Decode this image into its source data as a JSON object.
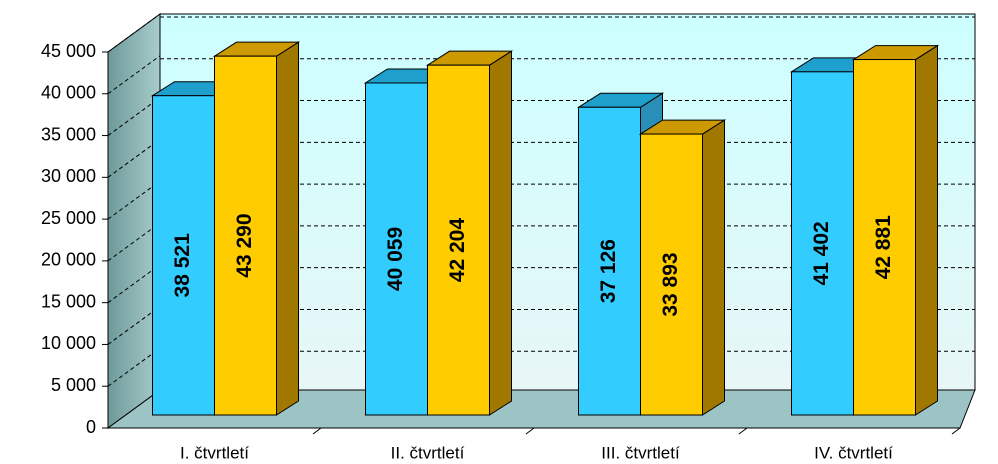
{
  "chart_data": {
    "type": "bar3d",
    "categories": [
      "I. čtvrtletí",
      "II. čtvrtletí",
      "III. čtvrtletí",
      "IV. čtvrtletí"
    ],
    "series": [
      {
        "color": "#33ccff",
        "values": [
          38521,
          40059,
          37126,
          41402
        ],
        "value_labels": [
          "38 521",
          "40 059",
          "37 126",
          "41 402"
        ]
      },
      {
        "color": "#ffcc00",
        "values": [
          43290,
          42204,
          33893,
          42881
        ],
        "value_labels": [
          "43 290",
          "42 204",
          "33 893",
          "42 881"
        ]
      }
    ],
    "ylim": [
      0,
      45000
    ],
    "yticks": [
      0,
      {
        "value": 5000,
        "label": "5 000"
      },
      {
        "value": 10000,
        "label": "10 000"
      },
      {
        "value": 15000,
        "label": "15 000"
      },
      {
        "value": 20000,
        "label": "20 000"
      },
      {
        "value": 25000,
        "label": "25 000"
      },
      {
        "value": 30000,
        "label": "30 000"
      },
      {
        "value": 35000,
        "label": "35 000"
      },
      {
        "value": 40000,
        "label": "40 000"
      },
      {
        "value": 45000,
        "label": "45 000"
      }
    ],
    "grid": true
  }
}
